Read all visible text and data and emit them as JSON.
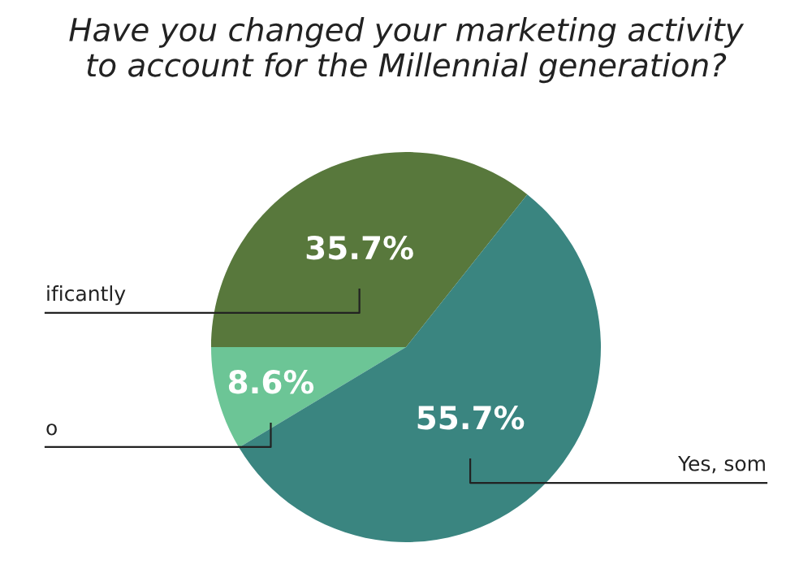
{
  "chart_data": {
    "type": "pie",
    "title": "Have you changed your marketing activity\nto account for the Millennial generation?",
    "categories": [
      "ificantly",
      "o",
      "Yes, som"
    ],
    "values": [
      35.7,
      8.6,
      55.7
    ],
    "colors": [
      "#58783c",
      "#6cc596",
      "#3a8580"
    ],
    "value_labels": [
      "35.7%",
      "8.6%",
      "55.7%"
    ],
    "legend": false
  }
}
